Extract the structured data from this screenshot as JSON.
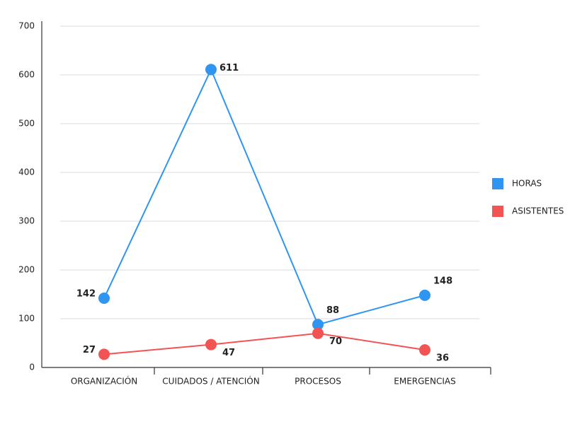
{
  "chart_data": {
    "type": "line",
    "categories": [
      "ORGANIZACIÓN",
      "CUIDADOS / ATENCIÓN",
      "PROCESOS",
      "EMERGENCIAS"
    ],
    "series": [
      {
        "name": "HORAS",
        "color": "#2f95f0",
        "values": [
          142,
          611,
          88,
          148
        ]
      },
      {
        "name": "ASISTENTES",
        "color": "#f25353",
        "values": [
          27,
          47,
          70,
          36
        ]
      }
    ],
    "ylim": [
      0,
      700
    ],
    "yticks": [
      0,
      100,
      200,
      300,
      400,
      500,
      600,
      700
    ],
    "grid": true,
    "legend": "right"
  }
}
